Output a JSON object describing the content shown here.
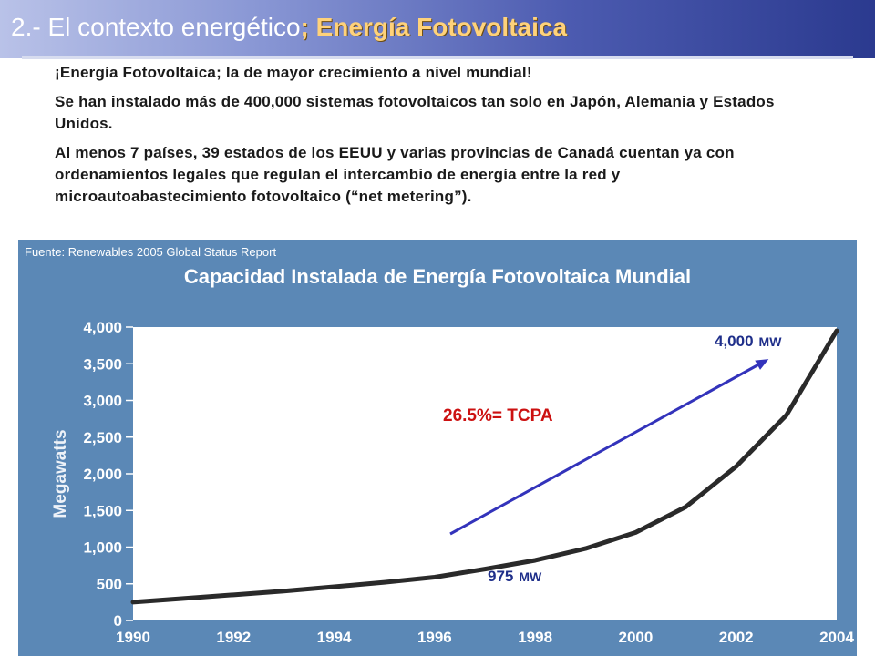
{
  "slide": {
    "title_plain": "2.- El contexto energético",
    "title_accent": "; Energía Fotovoltaica",
    "bullets": [
      "¡Energía Fotovoltaica; la de mayor crecimiento a nivel mundial!",
      "Se han instalado más de 400,000 sistemas fotovoltaicos tan solo en Japón, Alemania y Estados Unidos.",
      "Al menos 7 países, 39 estados de los EEUU y varias provincias de Canadá cuentan ya con ordenamientos legales que regulan el intercambio de energía entre la red y microautoabastecimiento fotovoltaico (“net metering”)."
    ],
    "source": "Fuente: Renewables 2005 Global Status Report"
  },
  "colors": {
    "panel": "#5b88b6",
    "plot_bg": "#ffffff",
    "line": "#2a2a2a",
    "arrow": "#3333bb",
    "cagr_text": "#cc1111",
    "annotation_text": "#1f2f8a"
  },
  "chart_data": {
    "type": "line",
    "title": "Capacidad Instalada de Energía Fotovoltaica Mundial",
    "xlabel": "",
    "ylabel": "Megawatts",
    "xlim": [
      1990,
      2004
    ],
    "ylim": [
      0,
      4000
    ],
    "x_ticks": [
      "1990",
      "1992",
      "1994",
      "1996",
      "1998",
      "2000",
      "2002",
      "2004"
    ],
    "y_ticks": [
      "0",
      "500",
      "1,000",
      "1,500",
      "2,000",
      "2,500",
      "3,000",
      "3,500",
      "4,000"
    ],
    "grid": false,
    "series": [
      {
        "x": [
          1990,
          1991,
          1992,
          1993,
          1994,
          1995,
          1996,
          1997,
          1998,
          1999,
          2000,
          2001,
          2002,
          2003,
          2004
        ],
        "y": [
          250,
          300,
          350,
          400,
          460,
          520,
          590,
          700,
          820,
          980,
          1200,
          1550,
          2100,
          2800,
          3950
        ]
      }
    ],
    "annotations": {
      "end_value": "4,000",
      "end_unit": "MW",
      "start_value": "975",
      "start_unit": "MW",
      "cagr": "26.5%= TCPA"
    }
  }
}
